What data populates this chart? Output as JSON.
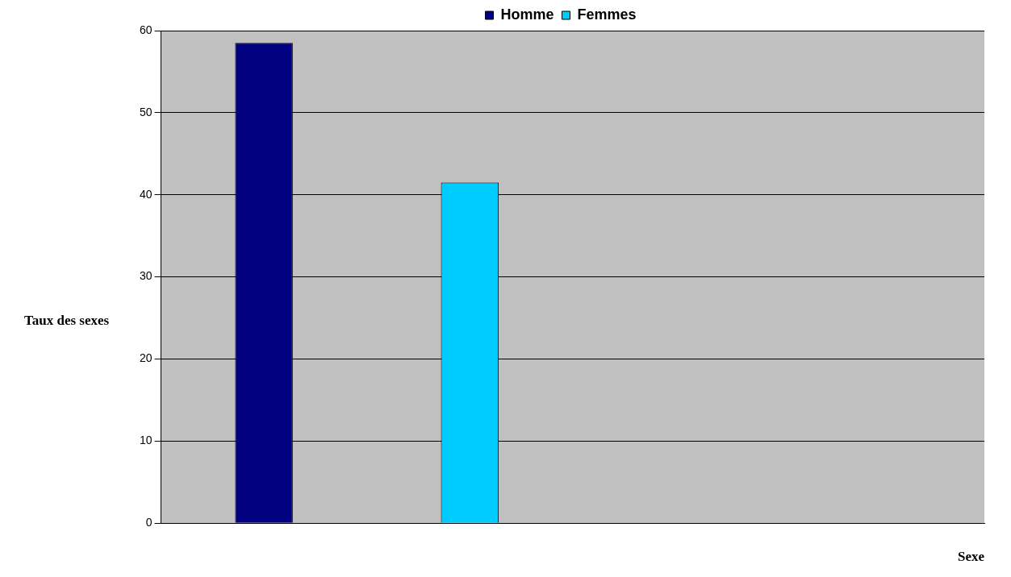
{
  "chart_data": {
    "type": "bar",
    "xlabel": "Sexe",
    "ylabel": "Taux des sexes",
    "categories": [
      null,
      null,
      null,
      null
    ],
    "series": [
      {
        "name": "Homme",
        "color": "#000080",
        "values": [
          58.5,
          null,
          null,
          null
        ]
      },
      {
        "name": "Femmes",
        "color": "#00ccff",
        "values": [
          null,
          41.5,
          null,
          null
        ]
      }
    ],
    "ylim": [
      0,
      60
    ],
    "yticks": [
      0,
      10,
      20,
      30,
      40,
      50,
      60
    ],
    "grid": "y",
    "legend": "top"
  }
}
